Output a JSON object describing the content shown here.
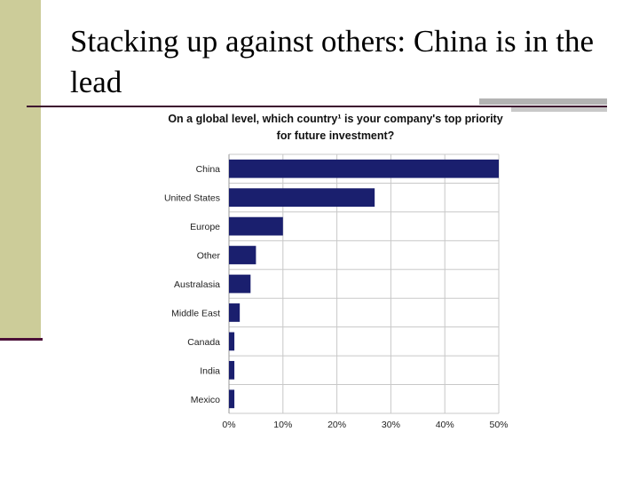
{
  "slide": {
    "title": "Stacking up against others: China is in the lead"
  },
  "chart_data": {
    "type": "bar",
    "orientation": "horizontal",
    "title": "On a global level, which country¹ is your company's top priority for future investment?",
    "categories": [
      "China",
      "United States",
      "Europe",
      "Other",
      "Australasia",
      "Middle East",
      "Canada",
      "India",
      "Mexico"
    ],
    "values": [
      50,
      27,
      10,
      5,
      4,
      2,
      1,
      1,
      1
    ],
    "xticks": [
      "0%",
      "10%",
      "20%",
      "30%",
      "40%",
      "50%"
    ],
    "xlim": [
      0,
      50
    ],
    "grid": true,
    "bar_color": "#1a1f6e"
  }
}
